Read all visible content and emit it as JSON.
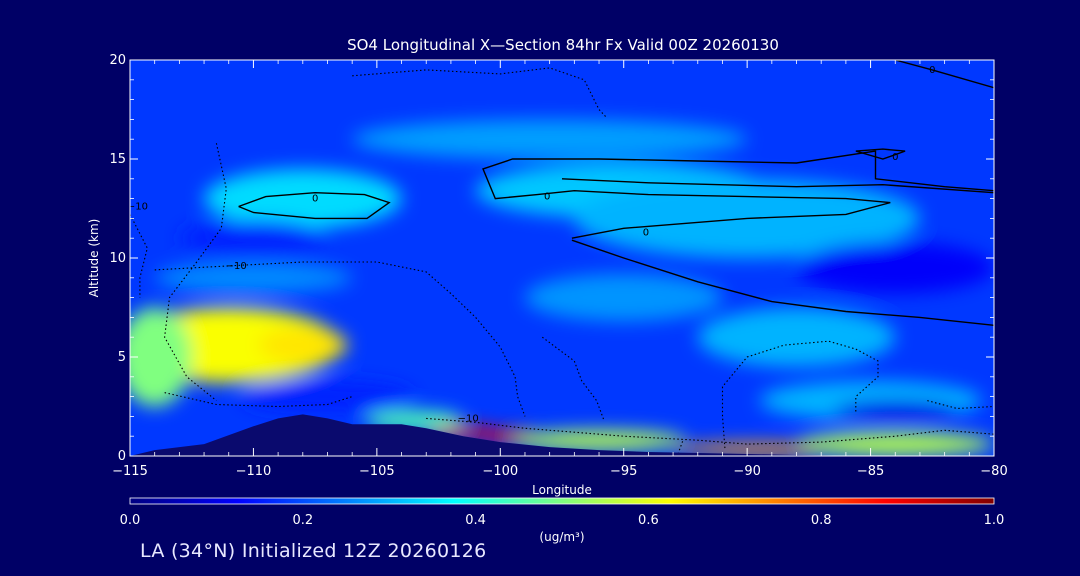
{
  "chart_data": {
    "type": "heatmap",
    "title": "SO4 Longitudinal X—Section 84hr  Fx Valid 00Z 20260130",
    "xlabel": "Longitude",
    "ylabel": "Altitude (km)",
    "xlim": [
      -115,
      -80
    ],
    "ylim": [
      0,
      20
    ],
    "x_ticks": [
      -115,
      -110,
      -105,
      -100,
      -95,
      -90,
      -85,
      -80
    ],
    "x_tick_labels": [
      "−115",
      "−110",
      "−105",
      "−100",
      "−95",
      "−90",
      "−85",
      "−80"
    ],
    "y_ticks": [
      0,
      5,
      10,
      15,
      20
    ],
    "y_tick_labels": [
      "0",
      "5",
      "10",
      "15",
      "20"
    ],
    "colorbar": {
      "label": "(ug/m³)",
      "range": [
        0.0,
        1.0
      ],
      "ticks": [
        0.0,
        0.2,
        0.4,
        0.6,
        0.8,
        1.0
      ],
      "tick_labels": [
        "0.0",
        "0.2",
        "0.4",
        "0.6",
        "0.8",
        "1.0"
      ],
      "colors": [
        "#000080",
        "#0000ff",
        "#0080ff",
        "#00ffff",
        "#80ff80",
        "#ffff00",
        "#ff8000",
        "#ff0000",
        "#800000"
      ]
    },
    "background_value": 0.18,
    "field_blobs": [
      {
        "lon": -111,
        "alt": 5.6,
        "rx": 4.5,
        "ry": 1.9,
        "value": 0.62
      },
      {
        "lon": -108,
        "alt": 5.6,
        "rx": 1.8,
        "ry": 0.9,
        "value": 0.65
      },
      {
        "lon": -114,
        "alt": 5.0,
        "rx": 1.5,
        "ry": 2.5,
        "value": 0.5
      },
      {
        "lon": -101.5,
        "alt": 1.2,
        "rx": 1.4,
        "ry": 0.3,
        "value": 0.9
      },
      {
        "lon": -99.5,
        "alt": 1.0,
        "rx": 1.3,
        "ry": 0.3,
        "value": 0.88
      },
      {
        "lon": -96,
        "alt": 0.8,
        "rx": 3.5,
        "ry": 0.5,
        "value": 0.55
      },
      {
        "lon": -89.5,
        "alt": 0.35,
        "rx": 3.5,
        "ry": 0.3,
        "value": 0.72
      },
      {
        "lon": -84,
        "alt": 0.6,
        "rx": 4.0,
        "ry": 0.6,
        "value": 0.55
      },
      {
        "lon": -103.5,
        "alt": 1.8,
        "rx": 2.0,
        "ry": 0.5,
        "value": 0.45
      },
      {
        "lon": -108,
        "alt": 13.0,
        "rx": 4.0,
        "ry": 1.5,
        "value": 0.34
      },
      {
        "lon": -95,
        "alt": 13.4,
        "rx": 6.0,
        "ry": 1.4,
        "value": 0.32
      },
      {
        "lon": -90,
        "alt": 12.0,
        "rx": 7.0,
        "ry": 2.0,
        "value": 0.3
      },
      {
        "lon": -98,
        "alt": 16.0,
        "rx": 8.0,
        "ry": 1.0,
        "value": 0.28
      },
      {
        "lon": -110,
        "alt": 9.0,
        "rx": 4.0,
        "ry": 0.8,
        "value": 0.26
      },
      {
        "lon": -95,
        "alt": 8.0,
        "rx": 4.0,
        "ry": 1.2,
        "value": 0.27
      },
      {
        "lon": -88,
        "alt": 6.0,
        "rx": 4.0,
        "ry": 1.5,
        "value": 0.3
      },
      {
        "lon": -85,
        "alt": 2.8,
        "rx": 4.5,
        "ry": 1.0,
        "value": 0.3
      },
      {
        "lon": -84,
        "alt": 9.5,
        "rx": 4.0,
        "ry": 1.3,
        "value": 0.12
      },
      {
        "lon": -84,
        "alt": 2.3,
        "rx": 2.5,
        "ry": 0.5,
        "value": 0.1
      },
      {
        "lon": -107,
        "alt": 3.0,
        "rx": 3.5,
        "ry": 0.8,
        "value": 0.16
      },
      {
        "lon": -110,
        "alt": 11.0,
        "rx": 3.0,
        "ry": 0.9,
        "value": 0.16
      }
    ],
    "terrain": [
      [
        -115,
        0.0
      ],
      [
        -114,
        0.3
      ],
      [
        -112,
        0.6
      ],
      [
        -110,
        1.5
      ],
      [
        -109,
        1.9
      ],
      [
        -108,
        2.1
      ],
      [
        -107,
        1.9
      ],
      [
        -106,
        1.6
      ],
      [
        -104,
        1.6
      ],
      [
        -103,
        1.4
      ],
      [
        -101.5,
        1.0
      ],
      [
        -100,
        0.7
      ],
      [
        -98,
        0.45
      ],
      [
        -96,
        0.3
      ],
      [
        -94,
        0.2
      ],
      [
        -92,
        0.15
      ],
      [
        -90,
        0.1
      ],
      [
        -88,
        0.05
      ],
      [
        -85,
        0.0
      ],
      [
        -80,
        0.0
      ]
    ],
    "contours": [
      {
        "style": "solid",
        "label": "0",
        "label_at": [
          -107.5,
          13.0
        ],
        "points": [
          [
            -110.6,
            12.6
          ],
          [
            -109.5,
            13.1
          ],
          [
            -107.5,
            13.3
          ],
          [
            -105.5,
            13.2
          ],
          [
            -104.5,
            12.8
          ],
          [
            -105.4,
            12.0
          ],
          [
            -107.5,
            12.0
          ],
          [
            -110,
            12.3
          ],
          [
            -110.6,
            12.6
          ]
        ]
      },
      {
        "style": "solid",
        "label": "0",
        "label_at": [
          -98.1,
          13.1
        ],
        "points": [
          [
            -97.5,
            14.0
          ],
          [
            -94,
            13.8
          ],
          [
            -88,
            13.6
          ],
          [
            -84.5,
            13.7
          ],
          [
            -80,
            13.3
          ]
        ]
      },
      {
        "style": "solid",
        "label": "0",
        "label_at": [
          -94.1,
          11.3
        ],
        "points": [
          [
            -97.1,
            11.0
          ],
          [
            -95,
            11.5
          ],
          [
            -90,
            12.0
          ],
          [
            -86,
            12.2
          ],
          [
            -84.2,
            12.8
          ],
          [
            -86,
            13.0
          ],
          [
            -90,
            13.1
          ],
          [
            -94,
            13.2
          ],
          [
            -97,
            13.4
          ],
          [
            -98.5,
            13.2
          ],
          [
            -100.2,
            13.0
          ],
          [
            -100.7,
            14.5
          ],
          [
            -99.5,
            15.0
          ],
          [
            -96,
            15.0
          ],
          [
            -92,
            14.9
          ],
          [
            -88,
            14.8
          ],
          [
            -84.8,
            15.4
          ],
          [
            -84.8,
            14.0
          ],
          [
            -82,
            13.6
          ],
          [
            -80,
            13.4
          ]
        ]
      },
      {
        "style": "solid",
        "label": "",
        "label_at": null,
        "points": [
          [
            -97.1,
            10.9
          ],
          [
            -95,
            10.0
          ],
          [
            -92,
            8.8
          ],
          [
            -89,
            7.8
          ],
          [
            -86,
            7.3
          ],
          [
            -83,
            7.0
          ],
          [
            -80,
            6.6
          ]
        ]
      },
      {
        "style": "solid",
        "label": "0",
        "label_at": [
          -84,
          15.1
        ],
        "points": [
          [
            -85.6,
            15.4
          ],
          [
            -84.5,
            15.5
          ],
          [
            -83.6,
            15.4
          ],
          [
            -84.5,
            15.0
          ],
          [
            -85.6,
            15.4
          ]
        ]
      },
      {
        "style": "solid",
        "label": "0",
        "label_at": [
          -82.5,
          19.5
        ],
        "points": [
          [
            -84,
            20
          ],
          [
            -82.5,
            19.5
          ],
          [
            -80,
            18.6
          ]
        ]
      },
      {
        "style": "dotted",
        "label": "−10",
        "label_at": [
          -101.3,
          1.9
        ],
        "points": [
          [
            -103,
            1.9
          ],
          [
            -101,
            1.7
          ],
          [
            -99,
            1.4
          ],
          [
            -97,
            1.2
          ],
          [
            -95,
            1.0
          ],
          [
            -92,
            0.8
          ],
          [
            -90,
            0.6
          ],
          [
            -87,
            0.7
          ],
          [
            -84,
            1.0
          ],
          [
            -82,
            1.3
          ],
          [
            -80,
            1.1
          ]
        ]
      },
      {
        "style": "dotted",
        "label": "−10",
        "label_at": [
          -110.7,
          9.6
        ],
        "points": [
          [
            -114,
            9.4
          ],
          [
            -111,
            9.6
          ],
          [
            -108,
            9.8
          ],
          [
            -105,
            9.8
          ],
          [
            -103,
            9.3
          ],
          [
            -102,
            8.2
          ],
          [
            -101,
            7.0
          ],
          [
            -100,
            5.5
          ],
          [
            -99.4,
            4.0
          ],
          [
            -99.3,
            3.0
          ],
          [
            -99.0,
            2.0
          ]
        ]
      },
      {
        "style": "dotted",
        "label": "−10",
        "label_at": [
          -114.7,
          12.6
        ],
        "points": [
          [
            -115,
            12.2
          ],
          [
            -114.3,
            10.5
          ],
          [
            -114.6,
            9.0
          ],
          [
            -114.6,
            8.0
          ]
        ]
      },
      {
        "style": "dotted",
        "label": "",
        "label_at": null,
        "points": [
          [
            -111.5,
            15.8
          ],
          [
            -111.1,
            13.5
          ],
          [
            -111.3,
            11.5
          ],
          [
            -112.3,
            9.8
          ],
          [
            -113.4,
            8.0
          ],
          [
            -113.6,
            6.0
          ],
          [
            -112.7,
            4.0
          ],
          [
            -111.5,
            2.8
          ]
        ]
      },
      {
        "style": "dotted",
        "label": "",
        "label_at": null,
        "points": [
          [
            -106,
            19.2
          ],
          [
            -103,
            19.5
          ],
          [
            -100,
            19.3
          ],
          [
            -98,
            19.6
          ],
          [
            -96.6,
            19.0
          ],
          [
            -96,
            17.5
          ],
          [
            -95.7,
            17.1
          ]
        ]
      },
      {
        "style": "dotted",
        "label": "",
        "label_at": null,
        "points": [
          [
            -98.3,
            6.0
          ],
          [
            -97.0,
            4.8
          ],
          [
            -96.7,
            3.8
          ],
          [
            -96.1,
            2.8
          ],
          [
            -95.8,
            1.8
          ]
        ]
      },
      {
        "style": "dotted",
        "label": "",
        "label_at": null,
        "points": [
          [
            -90.9,
            0.4
          ],
          [
            -91.0,
            2.0
          ],
          [
            -91.0,
            3.5
          ],
          [
            -90.0,
            5.0
          ],
          [
            -88.5,
            5.6
          ],
          [
            -86.7,
            5.8
          ],
          [
            -85.6,
            5.4
          ],
          [
            -84.7,
            4.8
          ],
          [
            -84.7,
            4.0
          ],
          [
            -85.6,
            3.0
          ],
          [
            -85.6,
            2.2
          ]
        ]
      },
      {
        "style": "dotted",
        "label": "",
        "label_at": null,
        "points": [
          [
            -82.7,
            2.8
          ],
          [
            -81.5,
            2.4
          ],
          [
            -80,
            2.5
          ]
        ]
      },
      {
        "style": "dotted",
        "label": "",
        "label_at": null,
        "points": [
          [
            -92.8,
            0.1
          ],
          [
            -92.6,
            0.8
          ]
        ]
      },
      {
        "style": "dotted",
        "label": "",
        "label_at": null,
        "points": [
          [
            -113.6,
            3.2
          ],
          [
            -111.5,
            2.6
          ],
          [
            -109,
            2.5
          ],
          [
            -107,
            2.6
          ],
          [
            -106,
            3.0
          ]
        ]
      }
    ]
  },
  "footer": {
    "text": "LA (34°N) Initialized 12Z 20260126"
  }
}
